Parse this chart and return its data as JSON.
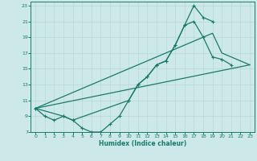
{
  "xlabel": "Humidex (Indice chaleur)",
  "bg_color": "#cce8e8",
  "grid_color": "#b8d8d8",
  "line_color": "#1a7a6a",
  "xlim": [
    -0.5,
    23.5
  ],
  "ylim": [
    7,
    23.5
  ],
  "xticks": [
    0,
    1,
    2,
    3,
    4,
    5,
    6,
    7,
    8,
    9,
    10,
    11,
    12,
    13,
    14,
    15,
    16,
    17,
    18,
    19,
    20,
    21,
    22,
    23
  ],
  "yticks": [
    7,
    9,
    11,
    13,
    15,
    17,
    19,
    21,
    23
  ],
  "line1_x": [
    0,
    1,
    2,
    3,
    4,
    5,
    6,
    7,
    8,
    9,
    10,
    11,
    12,
    13,
    14,
    15,
    16,
    17,
    18,
    19,
    20,
    21
  ],
  "line1_y": [
    10,
    9,
    8.5,
    9,
    8.5,
    7.5,
    7,
    7,
    8,
    9,
    11,
    13,
    14,
    15.5,
    16,
    18,
    20.5,
    23,
    21.5,
    21.0,
    null,
    null
  ],
  "line2_x": [
    0,
    3,
    4,
    10,
    11,
    12,
    13,
    14,
    15,
    16,
    17,
    18,
    19,
    20,
    21
  ],
  "line2_y": [
    10,
    9,
    8.5,
    11,
    13,
    14,
    15.5,
    16,
    18,
    20.5,
    21,
    19,
    16.5,
    16.2,
    15.5
  ],
  "line3_x": [
    0,
    23
  ],
  "line3_y": [
    10,
    15.5
  ],
  "line4_x": [
    0,
    19,
    20,
    21,
    22,
    23
  ],
  "line4_y": [
    10,
    19.5,
    17,
    16.5,
    16,
    15.5
  ]
}
